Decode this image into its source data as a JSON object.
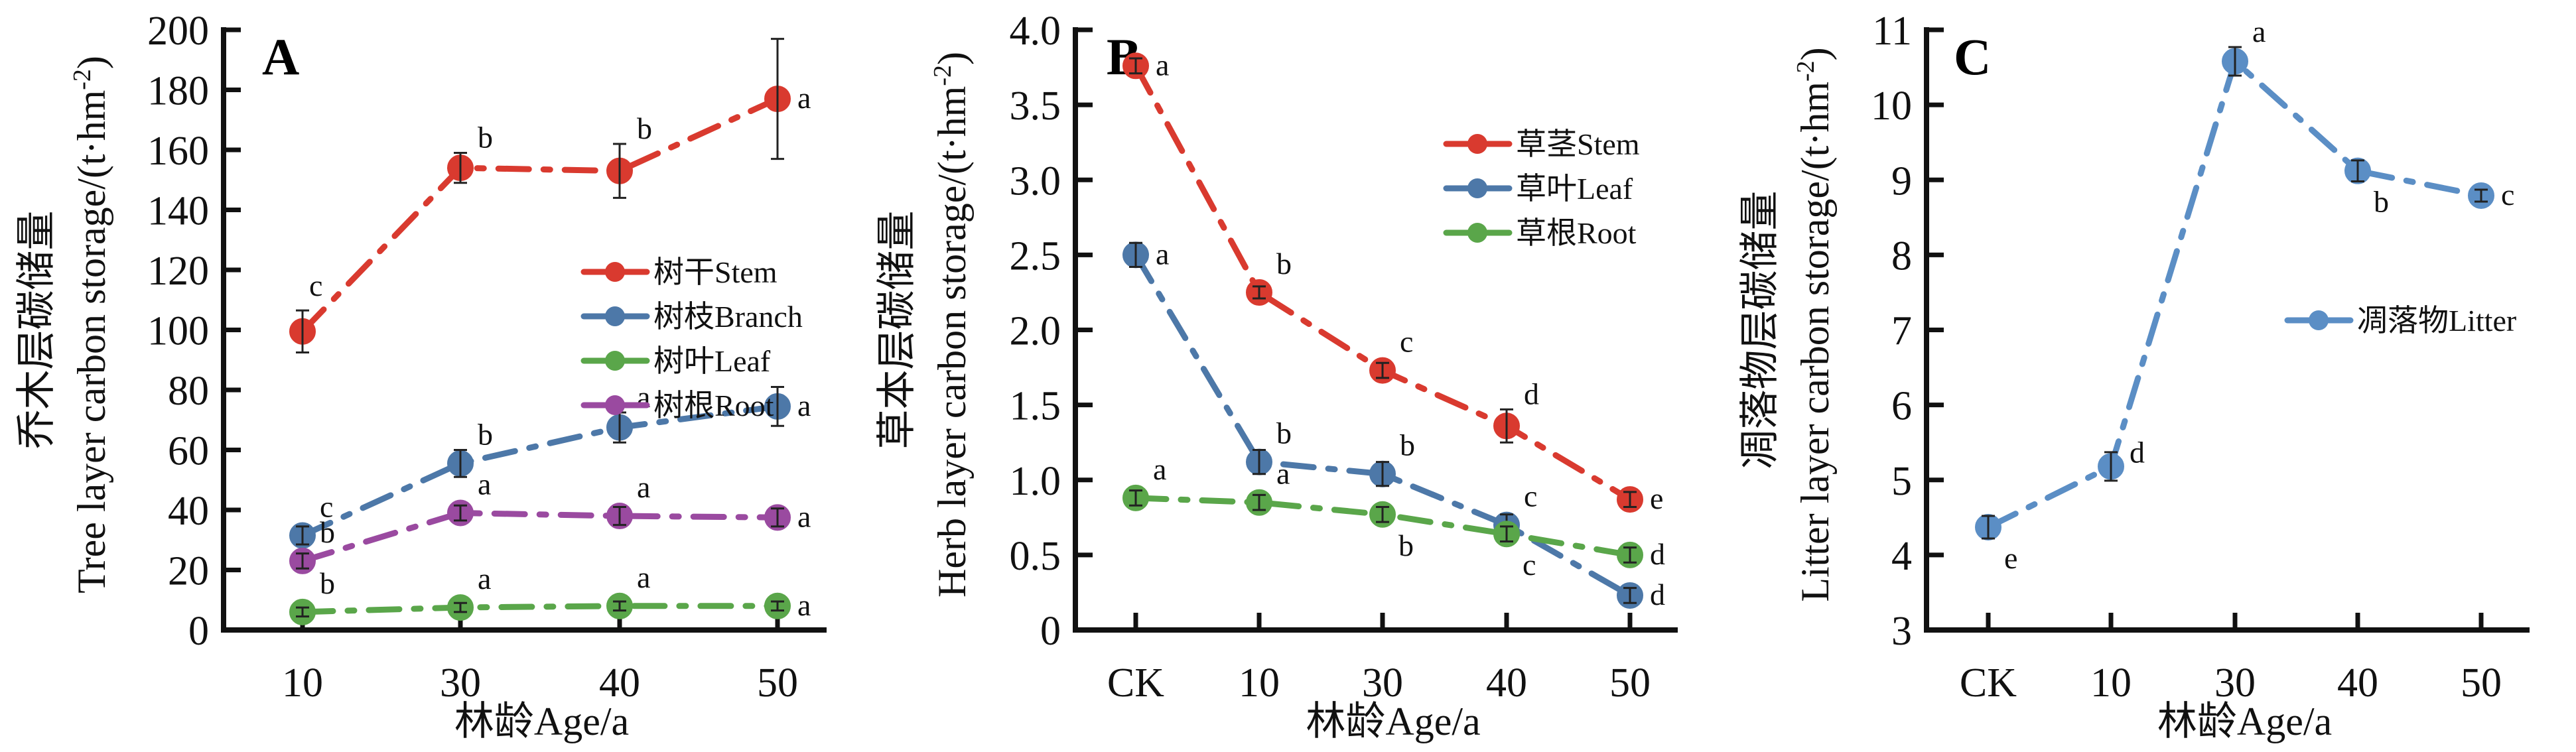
{
  "chart_data": [
    {
      "panel": "A",
      "type": "line",
      "title": "",
      "xlabel": "林龄Age/a",
      "ylabel_cn": "乔木层碳储量",
      "ylabel_en": "Tree layer carbon storage/(t·hm",
      "ylabel_sup": "-2",
      "ylabel_tail": ")",
      "categories": [
        "10",
        "30",
        "40",
        "50"
      ],
      "ylim": [
        0,
        200
      ],
      "yticks": [
        "0",
        "20",
        "40",
        "60",
        "80",
        "100",
        "120",
        "140",
        "160",
        "180",
        "200"
      ],
      "ytick_values": [
        0,
        20,
        40,
        60,
        80,
        100,
        120,
        140,
        160,
        180,
        200
      ],
      "grid": false,
      "legend_position": "center-right",
      "series": [
        {
          "name": "树干Stem",
          "color": "#d93a2f",
          "values": [
            99.5,
            154,
            153,
            177
          ],
          "errors": [
            7,
            5,
            9,
            20
          ],
          "letters": [
            "c",
            "b",
            "b",
            "a"
          ],
          "letter_pos": [
            "above",
            "above-right",
            "above-right",
            "right"
          ]
        },
        {
          "name": "树枝Branch",
          "color": "#4d78a8",
          "values": [
            31.5,
            55.5,
            67.5,
            74.5
          ],
          "errors": [
            3,
            4.5,
            5,
            6.5
          ],
          "letters": [
            "c",
            "b",
            "a",
            "a"
          ],
          "letter_pos": [
            "above-right",
            "above-right",
            "above-right",
            "right"
          ]
        },
        {
          "name": "树叶Leaf",
          "color": "#5aa64a",
          "values": [
            6,
            7.5,
            8,
            8
          ],
          "errors": [
            1.5,
            1.5,
            1.5,
            1.5
          ],
          "letters": [
            "b",
            "a",
            "a",
            "a"
          ],
          "letter_pos": [
            "above-right",
            "above-right",
            "above-right",
            "right"
          ]
        },
        {
          "name": "树根Root",
          "color": "#9a4aa0",
          "values": [
            23,
            39,
            38,
            37.5
          ],
          "errors": [
            2.5,
            2.5,
            3,
            3
          ],
          "letters": [
            "b",
            "a",
            "a",
            "a"
          ],
          "letter_pos": [
            "above-right",
            "above-right",
            "above-right",
            "right"
          ]
        }
      ]
    },
    {
      "panel": "B",
      "type": "line",
      "title": "",
      "xlabel": "林龄Age/a",
      "ylabel_cn": "草本层碳储量",
      "ylabel_en": "Herb layer carbon storage/(t·hm",
      "ylabel_sup": "-2",
      "ylabel_tail": ")",
      "categories": [
        "CK",
        "10",
        "30",
        "40",
        "50"
      ],
      "ylim": [
        0,
        4.0
      ],
      "yticks": [
        "0",
        "0.5",
        "1.0",
        "1.5",
        "2.0",
        "2.5",
        "3.0",
        "3.5",
        "4.0"
      ],
      "ytick_values": [
        0,
        0.5,
        1.0,
        1.5,
        2.0,
        2.5,
        3.0,
        3.5,
        4.0
      ],
      "grid": false,
      "legend_position": "top-right",
      "series": [
        {
          "name": "草茎Stem",
          "color": "#d93a2f",
          "values": [
            3.76,
            2.25,
            1.73,
            1.36,
            0.87
          ],
          "errors": [
            0.05,
            0.04,
            0.05,
            0.11,
            0.05
          ],
          "letters": [
            "a",
            "b",
            "c",
            "d",
            "e"
          ],
          "letter_pos": [
            "right",
            "above-right",
            "above-right",
            "above-right",
            "right"
          ]
        },
        {
          "name": "草叶Leaf",
          "color": "#4d78a8",
          "values": [
            2.5,
            1.12,
            1.04,
            0.7,
            0.23
          ],
          "errors": [
            0.08,
            0.08,
            0.08,
            0.07,
            0.05
          ],
          "letters": [
            "a",
            "b",
            "b",
            "c",
            "d"
          ],
          "letter_pos": [
            "right",
            "above-right",
            "above-right",
            "above-right",
            "right"
          ]
        },
        {
          "name": "草根Root",
          "color": "#5aa64a",
          "values": [
            0.88,
            0.85,
            0.77,
            0.64,
            0.5
          ],
          "errors": [
            0.05,
            0.05,
            0.05,
            0.05,
            0.05
          ],
          "letters": [
            "a",
            "a",
            "b",
            "c",
            "d"
          ],
          "letter_pos": [
            "above-right",
            "above-right",
            "below-right",
            "below-right",
            "right"
          ]
        }
      ]
    },
    {
      "panel": "C",
      "type": "line",
      "title": "",
      "xlabel": "林龄Age/a",
      "ylabel_cn": "凋落物层碳储量",
      "ylabel_en": "Litter layer carbon storage/(t·hm",
      "ylabel_sup": "-2",
      "ylabel_tail": ")",
      "categories": [
        "CK",
        "10",
        "30",
        "40",
        "50"
      ],
      "ylim": [
        3,
        11
      ],
      "yticks": [
        "3",
        "4",
        "5",
        "6",
        "7",
        "8",
        "9",
        "10",
        "11"
      ],
      "ytick_values": [
        3,
        4,
        5,
        6,
        7,
        8,
        9,
        10,
        11
      ],
      "grid": false,
      "legend_position": "center-right",
      "series": [
        {
          "name": "凋落物Litter",
          "color": "#5b8ec5",
          "values": [
            4.37,
            5.18,
            10.58,
            9.12,
            8.79
          ],
          "errors": [
            0.15,
            0.19,
            0.19,
            0.14,
            0.08
          ],
          "letters": [
            "e",
            "d",
            "a",
            "b",
            "c"
          ],
          "letter_pos": [
            "below-right",
            "right-up",
            "above-right",
            "below-right",
            "right"
          ]
        }
      ]
    }
  ]
}
